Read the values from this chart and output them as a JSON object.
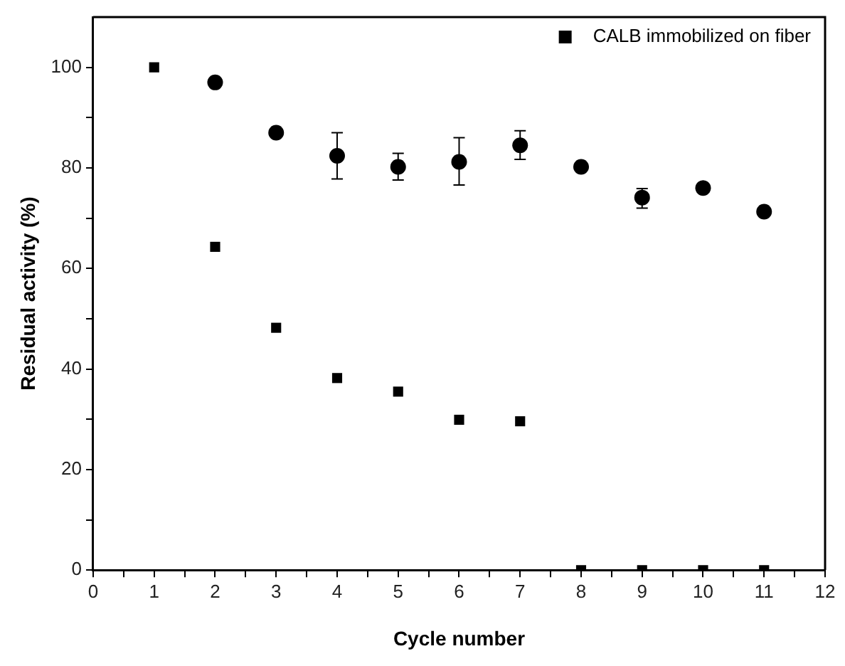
{
  "chart_data": {
    "type": "scatter",
    "xlabel": "Cycle number",
    "ylabel": "Residual activity (%)",
    "x": [
      1,
      2,
      3,
      4,
      5,
      6,
      7,
      8,
      9,
      10,
      11
    ],
    "series": [
      {
        "name": "CALB immobilized on fiber",
        "color": "#000000",
        "marker": "square",
        "values": [
          100,
          64.3,
          48.2,
          38.2,
          35.5,
          29.9,
          29.6,
          0,
          0,
          0,
          0
        ]
      },
      {
        "color": "#000000",
        "marker": "circle",
        "values": [
          null,
          97.0,
          87.0,
          82.4,
          80.2,
          81.2,
          84.5,
          80.2,
          74.1,
          76.0,
          71.3
        ],
        "errors": [
          null,
          null,
          null,
          [
            77.8,
            87.0
          ],
          [
            77.6,
            82.9
          ],
          [
            76.6,
            86.0
          ],
          [
            81.7,
            87.4
          ],
          null,
          [
            72.0,
            75.9
          ],
          null,
          null
        ]
      }
    ],
    "xlim": [
      0,
      12
    ],
    "xticks": [
      0,
      {
        "value": 0.5,
        "label": null
      },
      1,
      {
        "value": 1.5,
        "label": null
      },
      2,
      {
        "value": 2.5,
        "label": null
      },
      3,
      {
        "value": 3.5,
        "label": null
      },
      4,
      {
        "value": 4.5,
        "label": null
      },
      5,
      {
        "value": 5.5,
        "label": null
      },
      6,
      {
        "value": 6.5,
        "label": null
      },
      7,
      {
        "value": 7.5,
        "label": null
      },
      8,
      {
        "value": 8.5,
        "label": null
      },
      9,
      {
        "value": 9.5,
        "label": null
      },
      10,
      {
        "value": 10.5,
        "label": null
      },
      11,
      {
        "value": 11.5,
        "label": null
      },
      12
    ],
    "ylim": [
      0,
      110
    ],
    "yticks": [
      0,
      {
        "value": 10,
        "label": null
      },
      20,
      {
        "value": 30,
        "label": null
      },
      40,
      {
        "value": 50,
        "label": null
      },
      60,
      {
        "value": 70,
        "label": null
      },
      80,
      {
        "value": 90,
        "label": null
      },
      100
    ],
    "grid": false,
    "legend": "top right"
  }
}
